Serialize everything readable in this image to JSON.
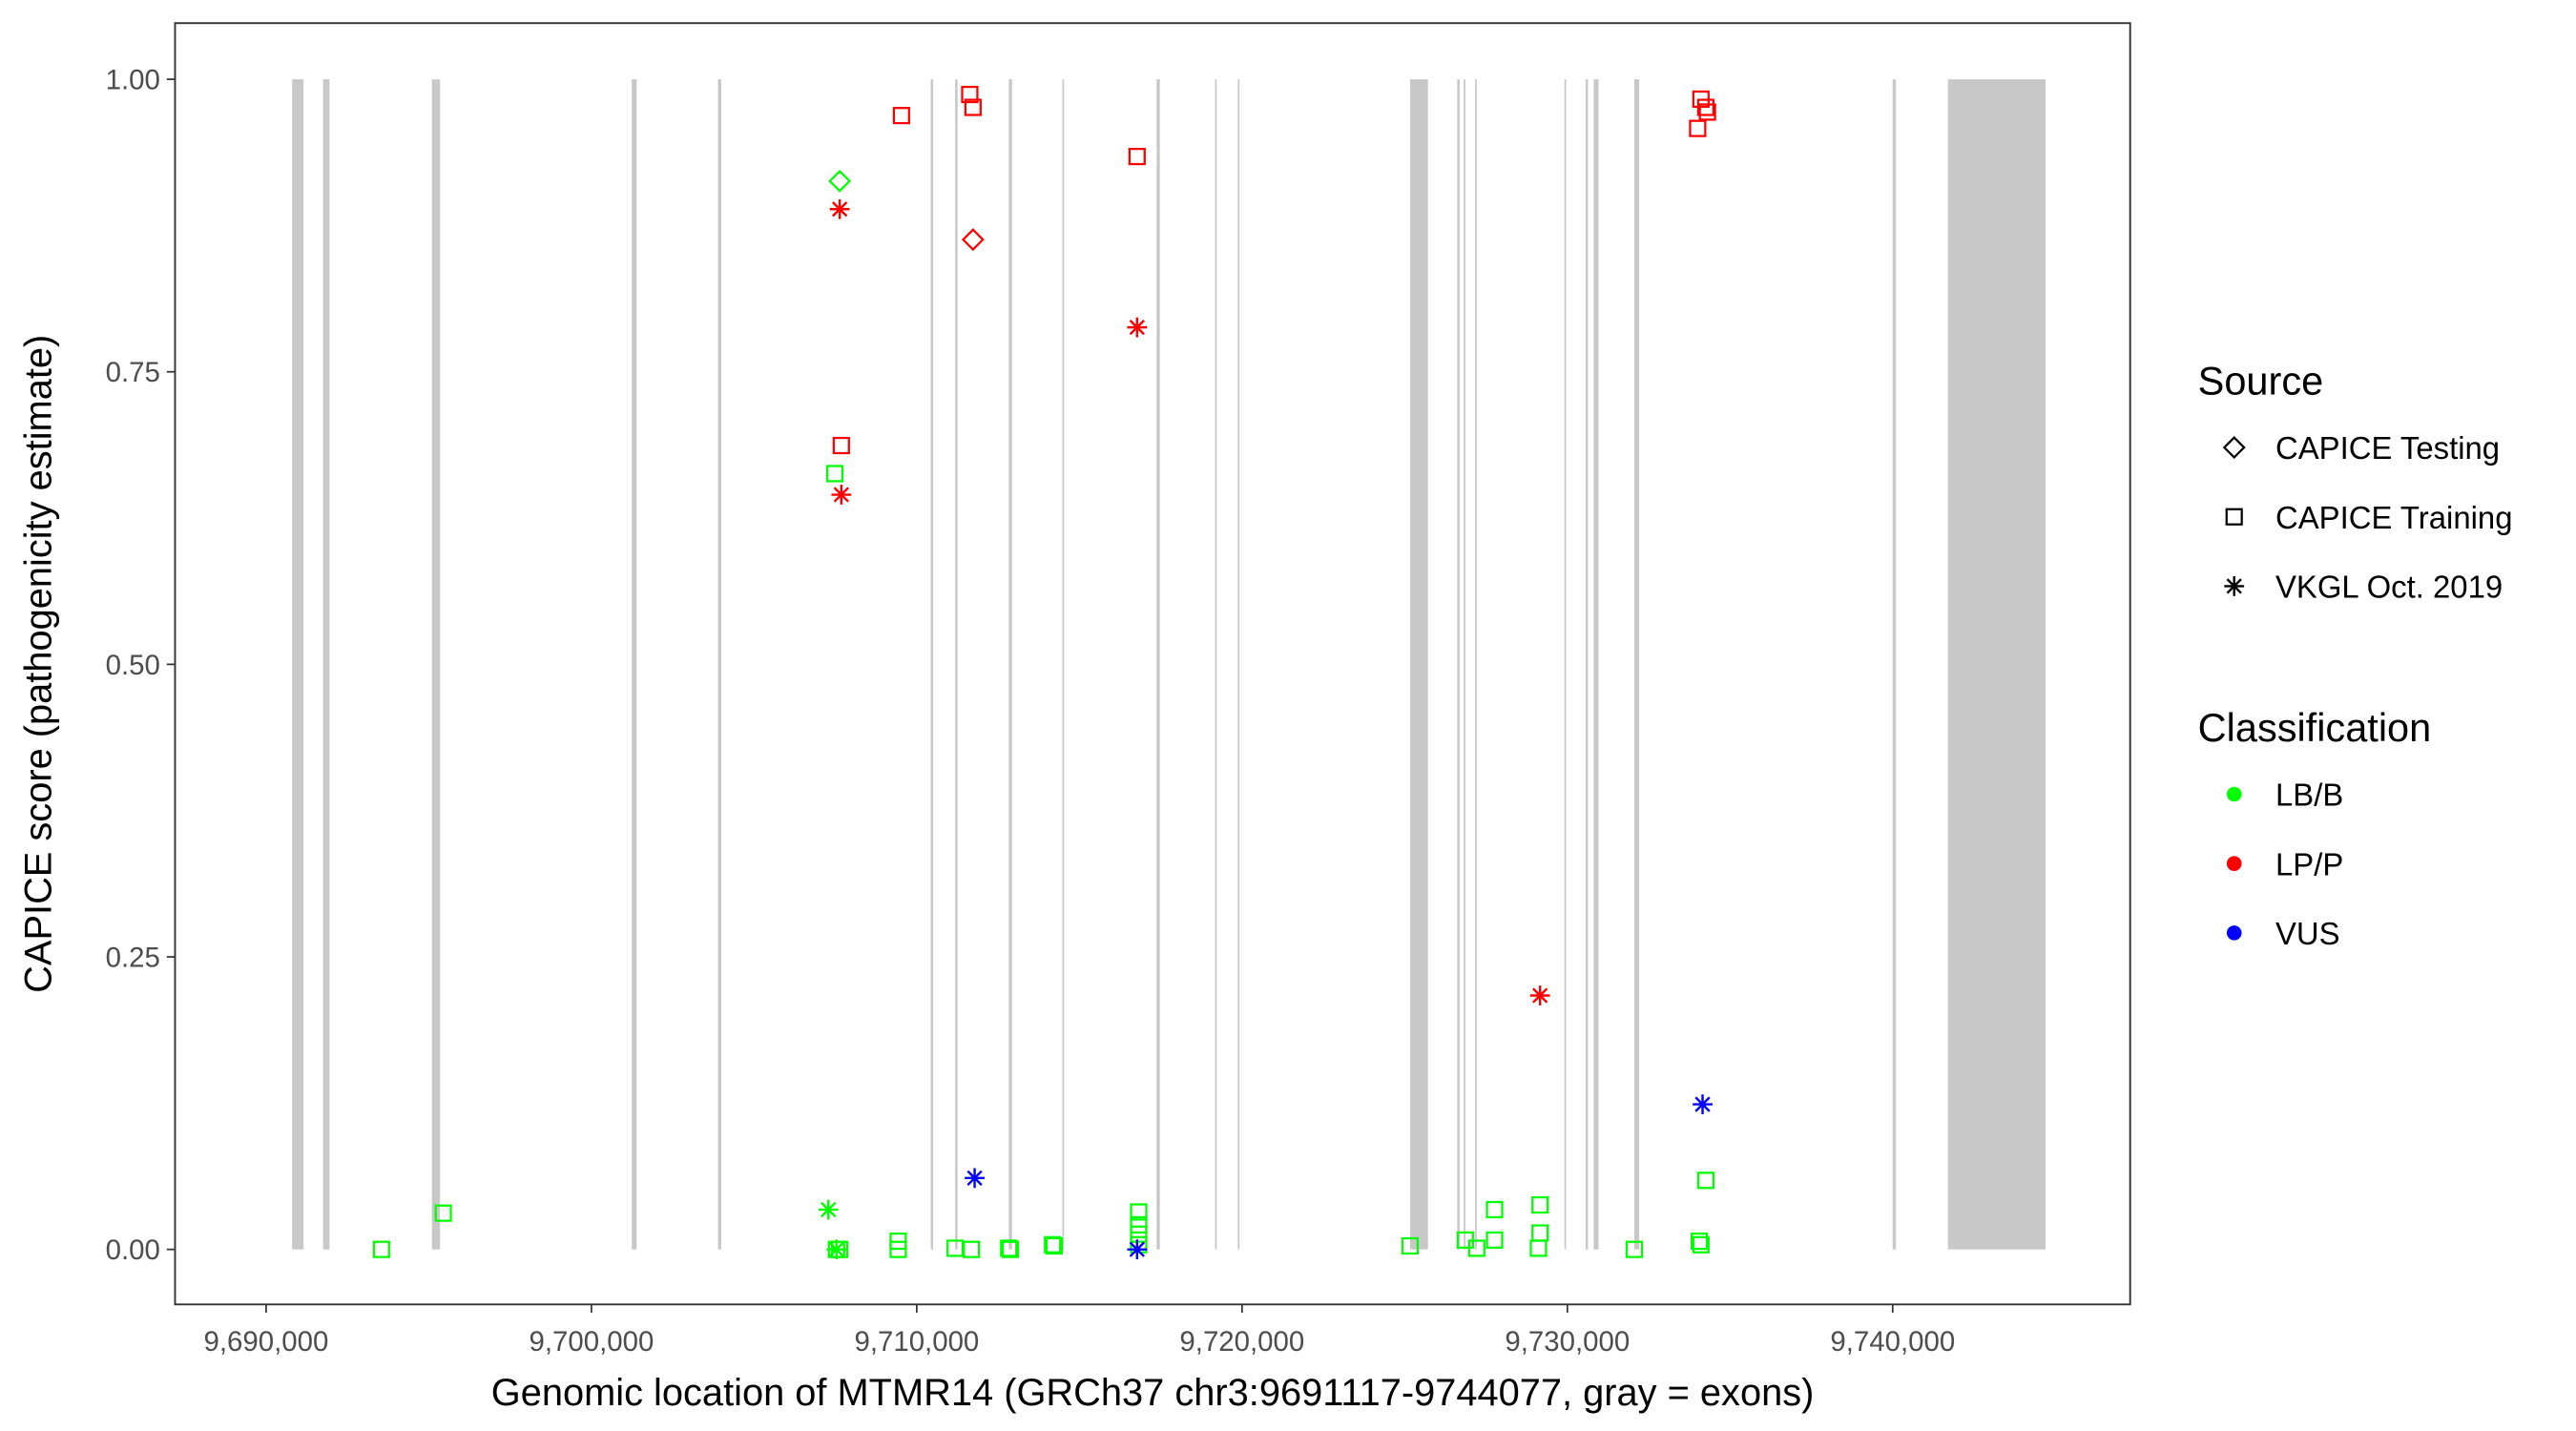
{
  "chart_data": {
    "type": "scatter",
    "xlabel": "Genomic location of MTMR14 (GRCh37 chr3:9691117-9744077, gray = exons)",
    "ylabel": "CAPICE score (pathogenicity estimate)",
    "xlim": [
      9687200,
      9747300
    ],
    "ylim": [
      -0.047,
      1.048
    ],
    "xticks": [
      9690000,
      9700000,
      9710000,
      9720000,
      9730000,
      9740000
    ],
    "xtick_labels": [
      "9,690,000",
      "9,700,000",
      "9,710,000",
      "9,720,000",
      "9,730,000",
      "9,740,000"
    ],
    "yticks": [
      0,
      0.25,
      0.5,
      0.75,
      1.0
    ],
    "ytick_labels": [
      "0.00",
      "0.25",
      "0.50",
      "0.75",
      "1.00"
    ],
    "grid": false,
    "exon_color": "#c8c8c8",
    "exons": [
      [
        9690800,
        9691150
      ],
      [
        9691750,
        9691950
      ],
      [
        9695095,
        9695345
      ],
      [
        9701240,
        9701390
      ],
      [
        9703890,
        9703990
      ],
      [
        9710430,
        9710505
      ],
      [
        9711180,
        9711255
      ],
      [
        9712830,
        9712930
      ],
      [
        9714476,
        9714526
      ],
      [
        9717373,
        9717473
      ],
      [
        9719170,
        9719220
      ],
      [
        9719870,
        9719920
      ],
      [
        9725165,
        9725715
      ],
      [
        9726614,
        9726690
      ],
      [
        9726814,
        9726864
      ],
      [
        9727164,
        9727214
      ],
      [
        9729910,
        9729960
      ],
      [
        9730560,
        9730635
      ],
      [
        9730810,
        9730960
      ],
      [
        9732058,
        9732208
      ],
      [
        9740000,
        9740100
      ],
      [
        9741700,
        9744700
      ]
    ],
    "legend": {
      "placement": "right",
      "source_title": "Source",
      "source_items": [
        {
          "label": "CAPICE Testing",
          "shape": "diamond"
        },
        {
          "label": "CAPICE Training",
          "shape": "square"
        },
        {
          "label": "VKGL Oct. 2019",
          "shape": "asterisk"
        }
      ],
      "class_title": "Classification",
      "class_items": [
        {
          "label": "LB/B",
          "color": "#00FF00"
        },
        {
          "label": "LP/P",
          "color": "#FF0000"
        },
        {
          "label": "VUS",
          "color": "#0000FF"
        }
      ]
    },
    "points": [
      {
        "x": 9709530,
        "y": 0.969,
        "source": "CAPICE Training",
        "class": "LP/P"
      },
      {
        "x": 9711630,
        "y": 0.987,
        "source": "CAPICE Training",
        "class": "LP/P"
      },
      {
        "x": 9711730,
        "y": 0.976,
        "source": "CAPICE Training",
        "class": "LP/P"
      },
      {
        "x": 9716773,
        "y": 0.934,
        "source": "CAPICE Training",
        "class": "LP/P"
      },
      {
        "x": 9707682,
        "y": 0.687,
        "source": "CAPICE Training",
        "class": "LP/P"
      },
      {
        "x": 9734106,
        "y": 0.983,
        "source": "CAPICE Training",
        "class": "LP/P"
      },
      {
        "x": 9734256,
        "y": 0.976,
        "source": "CAPICE Training",
        "class": "LP/P"
      },
      {
        "x": 9734306,
        "y": 0.972,
        "source": "CAPICE Training",
        "class": "LP/P"
      },
      {
        "x": 9734006,
        "y": 0.958,
        "source": "CAPICE Training",
        "class": "LP/P"
      },
      {
        "x": 9711730,
        "y": 0.863,
        "source": "CAPICE Testing",
        "class": "LP/P"
      },
      {
        "x": 9707632,
        "y": 0.913,
        "source": "CAPICE Testing",
        "class": "LB/B"
      },
      {
        "x": 9707632,
        "y": 0.889,
        "source": "VKGL Oct. 2019",
        "class": "LP/P"
      },
      {
        "x": 9707682,
        "y": 0.645,
        "source": "VKGL Oct. 2019",
        "class": "LP/P"
      },
      {
        "x": 9716773,
        "y": 0.788,
        "source": "VKGL Oct. 2019",
        "class": "LP/P"
      },
      {
        "x": 9729161,
        "y": 0.217,
        "source": "VKGL Oct. 2019",
        "class": "LP/P"
      },
      {
        "x": 9711780,
        "y": 0.061,
        "source": "VKGL Oct. 2019",
        "class": "VUS"
      },
      {
        "x": 9734156,
        "y": 0.124,
        "source": "VKGL Oct. 2019",
        "class": "VUS"
      },
      {
        "x": 9707283,
        "y": 0.034,
        "source": "VKGL Oct. 2019",
        "class": "LB/B"
      },
      {
        "x": 9707532,
        "y": 0.0,
        "source": "VKGL Oct. 2019",
        "class": "LB/B"
      },
      {
        "x": 9693546,
        "y": 0.0,
        "source": "CAPICE Training",
        "class": "LB/B"
      },
      {
        "x": 9695445,
        "y": 0.031,
        "source": "CAPICE Training",
        "class": "LB/B"
      },
      {
        "x": 9707482,
        "y": 0.663,
        "source": "CAPICE Training",
        "class": "LB/B"
      },
      {
        "x": 9707532,
        "y": 0.0,
        "source": "CAPICE Training",
        "class": "LB/B"
      },
      {
        "x": 9707632,
        "y": 0.0,
        "source": "CAPICE Training",
        "class": "LB/B"
      },
      {
        "x": 9709430,
        "y": 0.007,
        "source": "CAPICE Training",
        "class": "LB/B"
      },
      {
        "x": 9709430,
        "y": 0.0,
        "source": "CAPICE Training",
        "class": "LB/B"
      },
      {
        "x": 9711180,
        "y": 0.001,
        "source": "CAPICE Training",
        "class": "LB/B"
      },
      {
        "x": 9711680,
        "y": 0.0,
        "source": "CAPICE Training",
        "class": "LB/B"
      },
      {
        "x": 9712827,
        "y": 0.001,
        "source": "CAPICE Training",
        "class": "LB/B"
      },
      {
        "x": 9712877,
        "y": 0.0,
        "source": "CAPICE Training",
        "class": "LB/B"
      },
      {
        "x": 9714176,
        "y": 0.004,
        "source": "CAPICE Training",
        "class": "LB/B"
      },
      {
        "x": 9714226,
        "y": 0.003,
        "source": "CAPICE Training",
        "class": "LB/B"
      },
      {
        "x": 9716823,
        "y": 0.032,
        "source": "CAPICE Training",
        "class": "LB/B"
      },
      {
        "x": 9716823,
        "y": 0.021,
        "source": "CAPICE Training",
        "class": "LB/B"
      },
      {
        "x": 9716823,
        "y": 0.013,
        "source": "CAPICE Training",
        "class": "LB/B"
      },
      {
        "x": 9716823,
        "y": 0.004,
        "source": "CAPICE Training",
        "class": "LB/B"
      },
      {
        "x": 9716773,
        "y": 0.0,
        "source": "VKGL Oct. 2019",
        "class": "VUS"
      },
      {
        "x": 9725165,
        "y": 0.003,
        "source": "CAPICE Training",
        "class": "LB/B"
      },
      {
        "x": 9726864,
        "y": 0.008,
        "source": "CAPICE Training",
        "class": "LB/B"
      },
      {
        "x": 9727214,
        "y": 0.001,
        "source": "CAPICE Training",
        "class": "LB/B"
      },
      {
        "x": 9727763,
        "y": 0.034,
        "source": "CAPICE Training",
        "class": "LB/B"
      },
      {
        "x": 9727763,
        "y": 0.008,
        "source": "CAPICE Training",
        "class": "LB/B"
      },
      {
        "x": 9729161,
        "y": 0.038,
        "source": "CAPICE Training",
        "class": "LB/B"
      },
      {
        "x": 9729161,
        "y": 0.014,
        "source": "CAPICE Training",
        "class": "LB/B"
      },
      {
        "x": 9729111,
        "y": 0.001,
        "source": "CAPICE Training",
        "class": "LB/B"
      },
      {
        "x": 9732058,
        "y": 0.0,
        "source": "CAPICE Training",
        "class": "LB/B"
      },
      {
        "x": 9734056,
        "y": 0.007,
        "source": "CAPICE Training",
        "class": "LB/B"
      },
      {
        "x": 9734106,
        "y": 0.004,
        "source": "CAPICE Training",
        "class": "LB/B"
      },
      {
        "x": 9734256,
        "y": 0.059,
        "source": "CAPICE Training",
        "class": "LB/B"
      }
    ]
  }
}
